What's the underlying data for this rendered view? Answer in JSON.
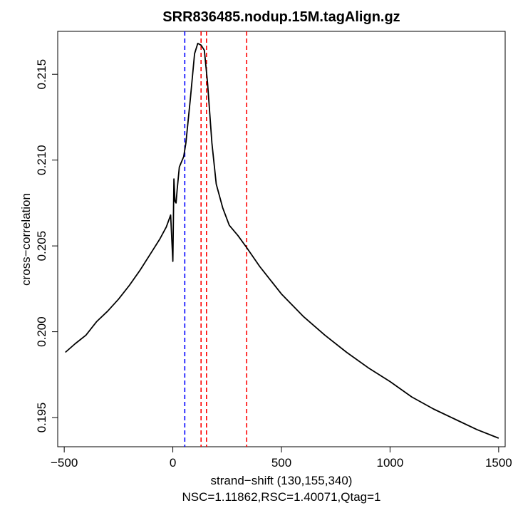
{
  "chart_data": {
    "type": "line",
    "title": "SRR836485.nodup.15M.tagAlign.gz",
    "xlabel": "strand−shift (130,155,340)",
    "subtitle": "NSC=1.11862,RSC=1.40071,Qtag=1",
    "ylabel": "cross−correlation",
    "xlim": [
      -530,
      1530
    ],
    "ylim": [
      0.1933,
      0.2175
    ],
    "x_ticks": [
      -500,
      0,
      500,
      1000,
      1500
    ],
    "x_tick_labels": [
      "−500",
      "0",
      "500",
      "1000",
      "1500"
    ],
    "y_ticks": [
      0.195,
      0.2,
      0.205,
      0.21,
      0.215
    ],
    "y_tick_labels": [
      "0.195",
      "0.200",
      "0.205",
      "0.210",
      "0.215"
    ],
    "vlines": [
      {
        "x": 55,
        "color": "#0000ff",
        "style": "dashed"
      },
      {
        "x": 130,
        "color": "#ff0000",
        "style": "dashed"
      },
      {
        "x": 155,
        "color": "#ff0000",
        "style": "dashed"
      },
      {
        "x": 340,
        "color": "#ff0000",
        "style": "dashed"
      }
    ],
    "series": [
      {
        "name": "cross-correlation",
        "color": "#000000",
        "x": [
          -495,
          -450,
          -400,
          -350,
          -300,
          -250,
          -200,
          -150,
          -100,
          -60,
          -30,
          -10,
          0,
          5,
          10,
          15,
          20,
          30,
          50,
          60,
          80,
          100,
          115,
          130,
          145,
          160,
          180,
          200,
          230,
          260,
          300,
          340,
          400,
          500,
          600,
          700,
          800,
          900,
          1000,
          1100,
          1200,
          1300,
          1400,
          1500
        ],
        "y": [
          0.1988,
          0.1993,
          0.1998,
          0.2006,
          0.2012,
          0.2019,
          0.2027,
          0.2036,
          0.2046,
          0.2054,
          0.2061,
          0.2068,
          0.2041,
          0.2089,
          0.2076,
          0.2075,
          0.2083,
          0.2096,
          0.2102,
          0.211,
          0.2135,
          0.2162,
          0.2168,
          0.2167,
          0.2164,
          0.2145,
          0.211,
          0.2086,
          0.2072,
          0.2062,
          0.2056,
          0.2049,
          0.2038,
          0.2022,
          0.2009,
          0.1998,
          0.1988,
          0.1979,
          0.1971,
          0.1962,
          0.1955,
          0.1949,
          0.1943,
          0.1938
        ]
      }
    ]
  }
}
